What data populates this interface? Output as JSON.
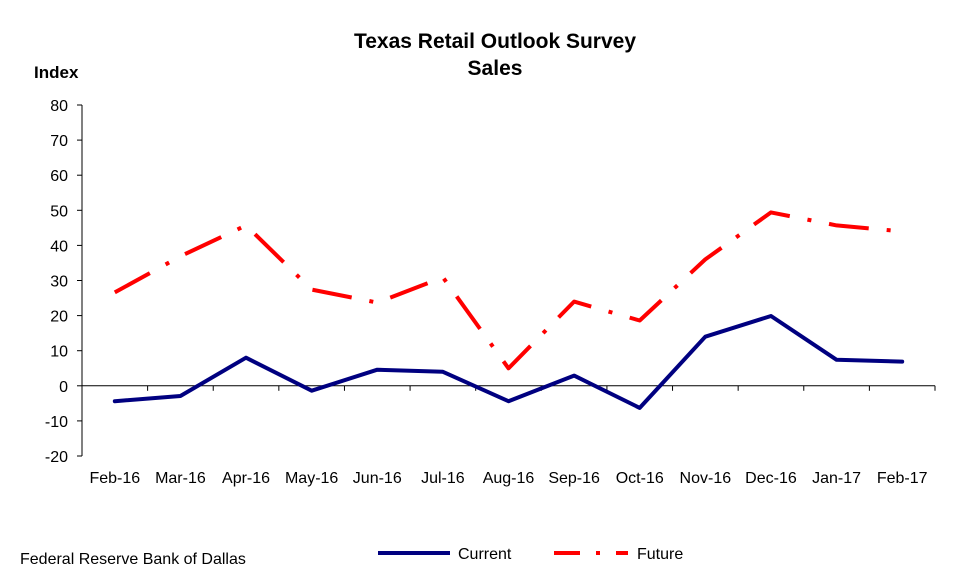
{
  "chart_data": {
    "type": "line",
    "title": "Texas Retail Outlook Survey",
    "subtitle": "Sales",
    "ylabel": "Index",
    "xlabel": "",
    "ylim": [
      -20,
      80
    ],
    "yticks": [
      -20,
      -10,
      0,
      10,
      20,
      30,
      40,
      50,
      60,
      70,
      80
    ],
    "categories": [
      "Feb-16",
      "Mar-16",
      "Apr-16",
      "May-16",
      "Jun-16",
      "Jul-16",
      "Aug-16",
      "Sep-16",
      "Oct-16",
      "Nov-16",
      "Dec-16",
      "Jan-17",
      "Feb-17"
    ],
    "series": [
      {
        "name": "Current",
        "color": "#000080",
        "style": "solid",
        "values": [
          -4.4,
          -2.9,
          8.0,
          -1.4,
          4.6,
          4.0,
          -4.4,
          2.9,
          -6.3,
          14.0,
          19.9,
          7.4,
          6.9
        ]
      },
      {
        "name": "Future",
        "color": "#ff0000",
        "style": "dash-dot",
        "values": [
          26.6,
          36.9,
          45.7,
          27.4,
          23.7,
          30.9,
          5.0,
          24.0,
          18.6,
          36.0,
          49.4,
          45.7,
          44.0
        ]
      }
    ],
    "legend_position": "bottom",
    "grid": false
  },
  "source": "Federal Reserve Bank of Dallas"
}
